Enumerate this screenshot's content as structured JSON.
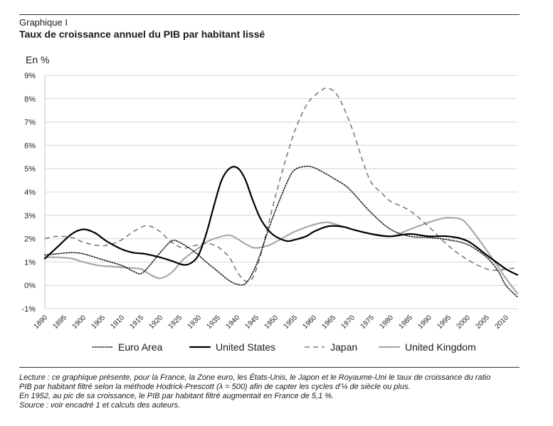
{
  "header": {
    "kicker": "Graphique I",
    "title": "Taux de croissance annuel du PIB par habitant lissé"
  },
  "chart_data": {
    "type": "line",
    "title": "Taux de croissance annuel du PIB par habitant lissé",
    "ylabel": "En %",
    "xlabel": "",
    "ylim": [
      -1,
      9
    ],
    "xlim": [
      1890,
      2013
    ],
    "y_ticks": [
      "-1%",
      "0%",
      "1%",
      "2%",
      "3%",
      "4%",
      "5%",
      "6%",
      "7%",
      "8%",
      "9%"
    ],
    "x_ticks": [
      "1890",
      "1895",
      "1900",
      "1905",
      "1910",
      "1915",
      "1920",
      "1925",
      "1930",
      "1935",
      "1940",
      "1945",
      "1950",
      "1955",
      "1960",
      "1965",
      "1970",
      "1975",
      "1980",
      "1985",
      "1990",
      "1995",
      "2000",
      "2005",
      "2010"
    ],
    "grid": "horizontal",
    "legend_position": "bottom",
    "series": [
      {
        "name": "Euro Area",
        "style": "dotted",
        "color": "#1a1a1a",
        "x": [
          1890,
          1893,
          1897,
          1900,
          1905,
          1910,
          1913,
          1915,
          1917,
          1920,
          1923,
          1925,
          1928,
          1930,
          1932,
          1935,
          1938,
          1940,
          1942,
          1944,
          1946,
          1948,
          1950,
          1953,
          1955,
          1958,
          1960,
          1963,
          1965,
          1968,
          1970,
          1975,
          1980,
          1985,
          1990,
          1995,
          2000,
          2005,
          2008,
          2010,
          2013
        ],
        "y": [
          1.3,
          1.35,
          1.4,
          1.35,
          1.1,
          0.85,
          0.6,
          0.5,
          0.8,
          1.4,
          1.9,
          1.85,
          1.55,
          1.3,
          1.0,
          0.6,
          0.2,
          0.05,
          0.05,
          0.5,
          1.3,
          2.3,
          3.2,
          4.4,
          4.95,
          5.1,
          5.05,
          4.8,
          4.6,
          4.3,
          4.0,
          3.1,
          2.4,
          2.1,
          2.05,
          1.95,
          1.75,
          1.2,
          0.6,
          0.0,
          -0.5
        ]
      },
      {
        "name": "United States",
        "style": "solid-thick",
        "color": "#000000",
        "x": [
          1890,
          1893,
          1897,
          1900,
          1903,
          1906,
          1910,
          1913,
          1916,
          1920,
          1923,
          1926,
          1928,
          1930,
          1932,
          1934,
          1936,
          1938,
          1940,
          1942,
          1944,
          1946,
          1948,
          1950,
          1953,
          1955,
          1958,
          1960,
          1963,
          1965,
          1968,
          1970,
          1975,
          1980,
          1985,
          1990,
          1995,
          2000,
          2005,
          2010,
          2013
        ],
        "y": [
          1.15,
          1.6,
          2.2,
          2.4,
          2.25,
          1.9,
          1.55,
          1.4,
          1.35,
          1.2,
          1.05,
          0.88,
          0.95,
          1.3,
          2.2,
          3.4,
          4.5,
          5.0,
          5.05,
          4.6,
          3.7,
          2.9,
          2.4,
          2.1,
          1.9,
          1.95,
          2.1,
          2.3,
          2.5,
          2.55,
          2.5,
          2.4,
          2.2,
          2.1,
          2.2,
          2.1,
          2.1,
          1.9,
          1.3,
          0.7,
          0.45
        ]
      },
      {
        "name": "Japan",
        "style": "dashed",
        "color": "#7a7a7a",
        "x": [
          1890,
          1893,
          1897,
          1900,
          1904,
          1907,
          1910,
          1913,
          1916,
          1918,
          1920,
          1923,
          1926,
          1929,
          1932,
          1935,
          1938,
          1940,
          1942,
          1944,
          1946,
          1948,
          1950,
          1952,
          1955,
          1958,
          1960,
          1962,
          1963,
          1965,
          1967,
          1970,
          1973,
          1975,
          1978,
          1980,
          1985,
          1990,
          1995,
          2000,
          2005,
          2008,
          2010,
          2013
        ],
        "y": [
          2.0,
          2.1,
          2.05,
          1.85,
          1.7,
          1.75,
          1.95,
          2.3,
          2.55,
          2.5,
          2.3,
          1.85,
          1.6,
          1.7,
          1.8,
          1.65,
          1.2,
          0.6,
          0.2,
          0.3,
          1.2,
          2.5,
          3.8,
          5.0,
          6.6,
          7.7,
          8.1,
          8.35,
          8.45,
          8.35,
          7.9,
          6.7,
          5.2,
          4.4,
          3.9,
          3.6,
          3.2,
          2.5,
          1.7,
          1.1,
          0.7,
          0.65,
          0.7,
          0.75
        ]
      },
      {
        "name": "United Kingdom",
        "style": "solid-light",
        "color": "#a8a8a8",
        "x": [
          1890,
          1893,
          1897,
          1900,
          1904,
          1908,
          1912,
          1915,
          1917,
          1920,
          1923,
          1926,
          1930,
          1932,
          1935,
          1938,
          1940,
          1943,
          1945,
          1948,
          1950,
          1955,
          1960,
          1963,
          1965,
          1970,
          1975,
          1980,
          1985,
          1990,
          1993,
          1995,
          1998,
          2000,
          2005,
          2010,
          2013
        ],
        "y": [
          1.2,
          1.2,
          1.15,
          1.0,
          0.85,
          0.8,
          0.75,
          0.7,
          0.5,
          0.3,
          0.55,
          1.1,
          1.6,
          1.85,
          2.05,
          2.15,
          2.0,
          1.7,
          1.6,
          1.7,
          1.85,
          2.3,
          2.6,
          2.7,
          2.65,
          2.4,
          2.2,
          2.1,
          2.4,
          2.7,
          2.85,
          2.9,
          2.85,
          2.6,
          1.5,
          0.3,
          -0.35
        ]
      }
    ]
  },
  "footnotes": {
    "line1": "Lecture : ce graphique présente, pour la France, la Zone euro, les États-Unis, le Japon et le Royaume-Uni le taux de croissance du ratio",
    "line2": "PIB par habitant filtré selon la méthode Hodrick-Prescott (λ = 500) afin de capter les cycles d'¼ de siècle ou plus.",
    "line3": "En 1952, au pic de sa croissance, le PIB par habitant filtré augmentait en France de 5,1 %.",
    "line4": "Source : voir encadré 1 et calculs des auteurs."
  }
}
